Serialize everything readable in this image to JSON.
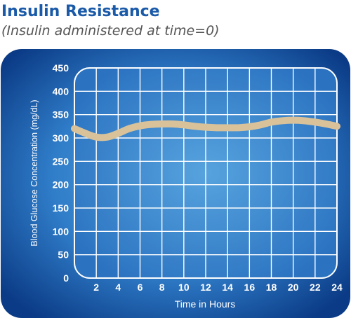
{
  "title": "Insulin Resistance",
  "subtitle": "(Insulin administered at time=0)",
  "colors": {
    "title": "#1a5aa8",
    "panel_outer": "#0c3f8c",
    "panel_inner": "#3f92d6",
    "grid": "#ffffff",
    "curve": "#d9c29a"
  },
  "chart_data": {
    "type": "line",
    "title": "Insulin Resistance",
    "subtitle": "(Insulin administered at time=0)",
    "xlabel": "Time in Hours",
    "ylabel": "Blood Glucose Concentration (mg/dL)",
    "xlim": [
      0,
      24
    ],
    "ylim": [
      0,
      450
    ],
    "x_ticks": [
      2,
      4,
      6,
      8,
      10,
      12,
      14,
      16,
      18,
      20,
      22,
      24
    ],
    "y_ticks": [
      0,
      50,
      100,
      150,
      200,
      250,
      300,
      350,
      400,
      450
    ],
    "grid": true,
    "series": [
      {
        "x": [
          0,
          1,
          2,
          3,
          4,
          5,
          6,
          7,
          8,
          9,
          10,
          11,
          12,
          13,
          14,
          15,
          16,
          17,
          18,
          19,
          20,
          21,
          22,
          23,
          24
        ],
        "values": [
          320,
          310,
          302,
          302,
          310,
          320,
          326,
          329,
          330,
          330,
          328,
          325,
          323,
          322,
          322,
          322,
          324,
          328,
          334,
          337,
          338,
          337,
          334,
          330,
          325
        ]
      }
    ]
  }
}
